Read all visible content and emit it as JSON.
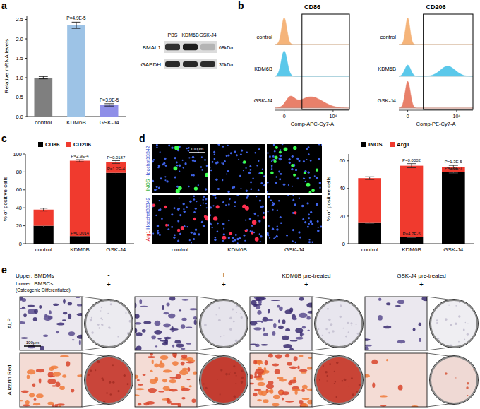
{
  "chart_data": [
    {
      "type": "bar",
      "y_label": "Relative mRNA levels",
      "categories": [
        "control",
        "KDM6B",
        "GSK-J4"
      ],
      "values": [
        1.0,
        2.35,
        0.3
      ],
      "errors": [
        0.03,
        0.08,
        0.03
      ],
      "colors": [
        "#7f7f7f",
        "#9dc3e6",
        "#8f8fe8"
      ],
      "annotations": [
        null,
        "P=4.9E-5",
        "P=3.9E-5"
      ],
      "ylim": [
        0,
        2.6
      ],
      "yticks": [
        {
          "value": 0,
          "label": "0.0"
        },
        {
          "value": 0.5,
          "label": "0.5"
        },
        {
          "value": 1,
          "label": "1.0"
        },
        {
          "value": 1.5,
          "label": "1.5"
        },
        {
          "value": 2,
          "label": "2.0"
        },
        {
          "value": 2.5,
          "label": "2.5"
        }
      ]
    },
    {
      "type": "bar",
      "stacked": true,
      "legend": "top",
      "y_label": "% of positive cells",
      "categories": [
        "control",
        "KDM6B",
        "GSK-J4"
      ],
      "series": [
        {
          "name": "CD86",
          "color": "#000000",
          "values": [
            20,
            8.5,
            79
          ],
          "errors": [
            1.5,
            0.8,
            1.5
          ],
          "annotations": [
            null,
            "P=0.0014",
            "P=1.2E-4"
          ]
        },
        {
          "name": "CD206",
          "color": "#f03a2e",
          "values": [
            18,
            84,
            12
          ],
          "errors": [
            1.5,
            1.2,
            1.5
          ],
          "annotations": [
            null,
            "P=2.9E-4",
            "P=0.0187"
          ]
        }
      ],
      "ylim": [
        0,
        100
      ],
      "yticks": [
        0,
        20,
        40,
        60,
        80,
        100
      ]
    },
    {
      "type": "bar",
      "stacked": true,
      "legend": "top",
      "y_label": "% of positive cells",
      "categories": [
        "control",
        "KDM6B",
        "GSK-J4"
      ],
      "series": [
        {
          "name": "INOS",
          "color": "#000000",
          "values": [
            15.5,
            5,
            52
          ],
          "errors": [
            0.7,
            0.5,
            0.8
          ],
          "annotations": [
            null,
            "P=4.7E-5",
            "P=3.8E-7"
          ]
        },
        {
          "name": "Arg1",
          "color": "#f03a2e",
          "values": [
            32,
            51.5,
            3.5
          ],
          "errors": [
            1,
            1.5,
            1.2
          ],
          "annotations": [
            null,
            "P=0.0002",
            "P=1.3E-5"
          ]
        }
      ],
      "ylim": [
        0,
        65
      ],
      "yticks": [
        0,
        20,
        40,
        60
      ]
    }
  ],
  "figure": {
    "panel_letters": [
      "a",
      "b",
      "c",
      "d",
      "e"
    ],
    "blot": {
      "lanes": [
        "PBS",
        "KDM6B",
        "GSK-J4"
      ],
      "bands": [
        {
          "name": "BMAL1",
          "size": "68kDa"
        },
        {
          "name": "GAPDH",
          "size": "36kDa"
        }
      ]
    },
    "flow": {
      "markers": [
        "CD86",
        "CD206"
      ],
      "groups": [
        "control",
        "KDM6B",
        "GSK-J4"
      ],
      "axis_labels": [
        "Comp-APC-Cy7-A",
        "Comp-PE-Cy7-A"
      ],
      "tick_labels": [
        "0",
        "10⁴"
      ]
    },
    "staining": {
      "channels": [
        [
          "INOS",
          "Hoechst33342"
        ],
        [
          "Arg1",
          "Hoechst33342"
        ]
      ],
      "groups": [
        "control",
        "KDM6B",
        "GSK-J4"
      ],
      "scale_bar": "100μm"
    },
    "coculture": {
      "upper_label": "Upper: BMDMs",
      "upper": [
        "-",
        "+",
        "KDM6B pre-treated",
        "GSK-J4 pre-treated"
      ],
      "lower_label": "Lower: BMSCs",
      "lower_note": "(Osteogenic Differentiated)",
      "lower": [
        "+",
        "+",
        "+",
        "+"
      ],
      "rows": [
        "ALP",
        "Alizarin Red"
      ],
      "scale_bar": "100μm"
    }
  }
}
